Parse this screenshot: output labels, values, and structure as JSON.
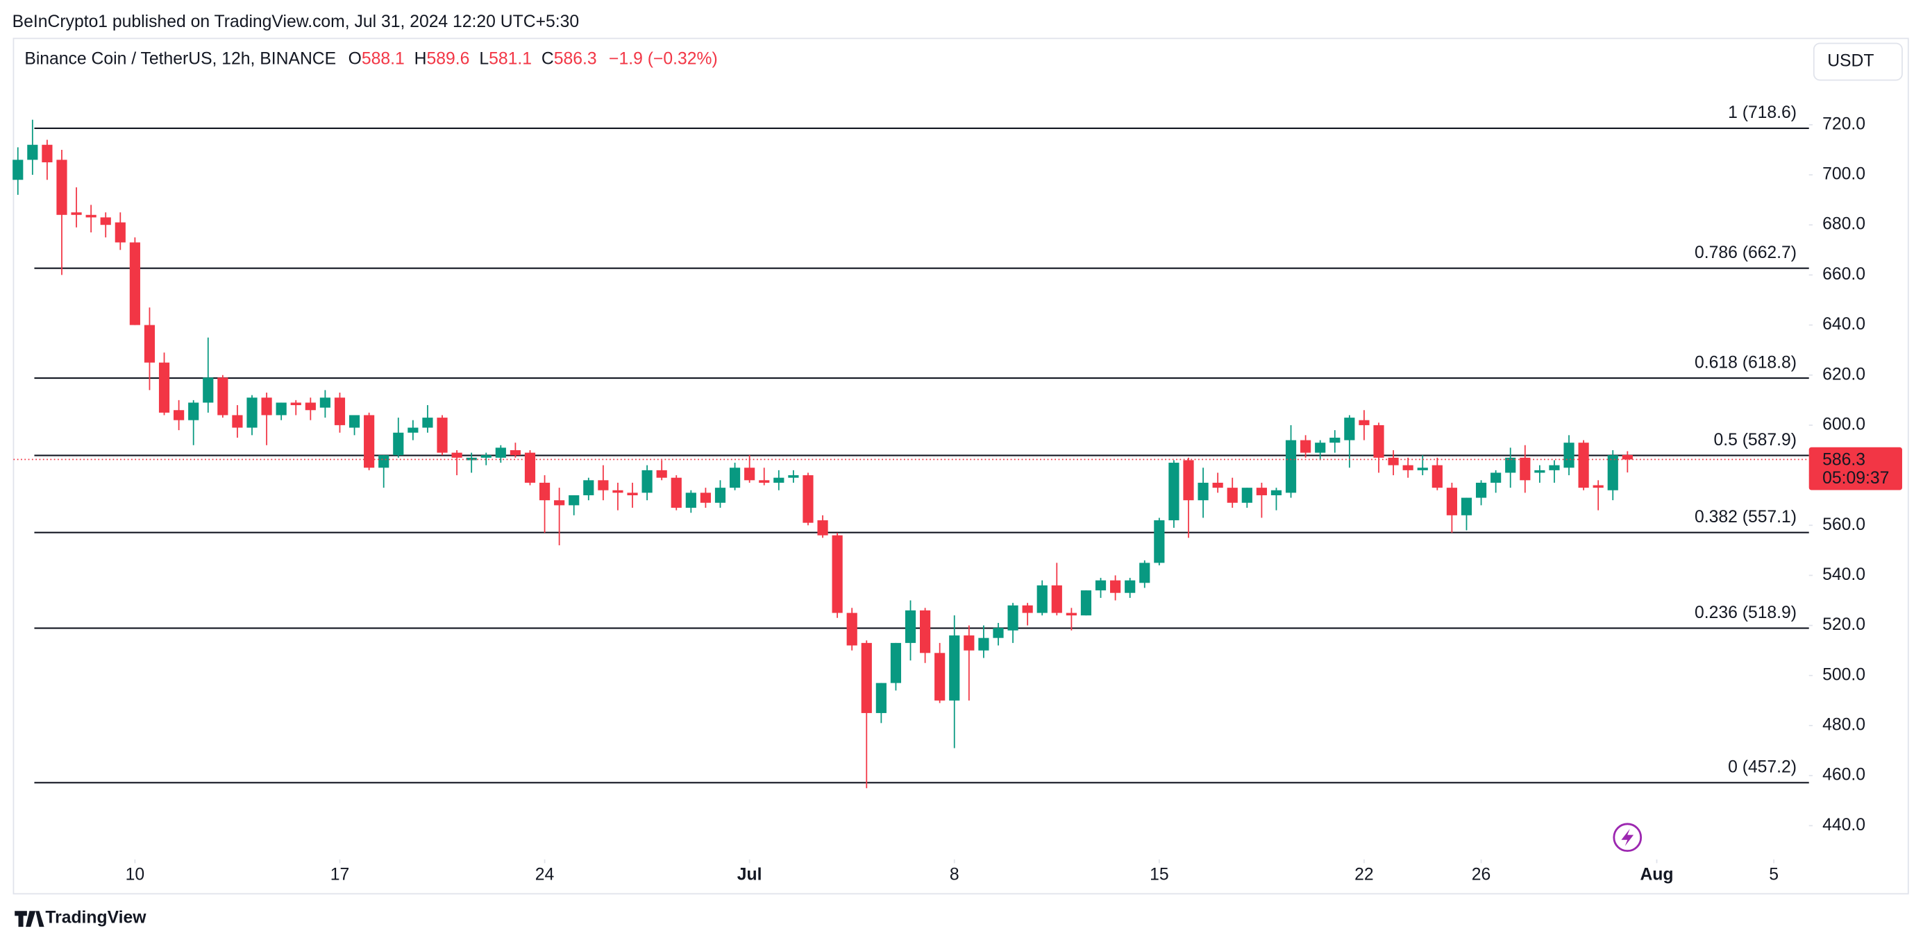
{
  "header": "BeInCrypto1 published on TradingView.com, Jul 31, 2024 12:20 UTC+5:30",
  "footer": "TradingView",
  "currency_button": "USDT",
  "countdown": "05:09:37",
  "chart_data": {
    "type": "candlestick",
    "legend": {
      "symbol": "Binance Coin / TetherUS, 12h, BINANCE",
      "open_label": "O",
      "open": 588.1,
      "high_label": "H",
      "high": 589.6,
      "low_label": "L",
      "low": 581.1,
      "close_label": "C",
      "close": 586.3,
      "change": "−1.9 (−0.32%)"
    },
    "up_color": "#089981",
    "down_color": "#f23645",
    "open": [
      698,
      706,
      712,
      706,
      685,
      684,
      683,
      681,
      673,
      640,
      625,
      606,
      602,
      609,
      619,
      604,
      599,
      611,
      604,
      609,
      609,
      607,
      611,
      599,
      604,
      583,
      588,
      597,
      599,
      603,
      589,
      586,
      587,
      587,
      590,
      589,
      577,
      570,
      568,
      572,
      578,
      574,
      573,
      573,
      582,
      579,
      567,
      573,
      569,
      575,
      583,
      578,
      577,
      579,
      580,
      562,
      556,
      525,
      513,
      485,
      497,
      513,
      526,
      509,
      490,
      516,
      510,
      515,
      518,
      528,
      525,
      536,
      525,
      524,
      534,
      538,
      533,
      537,
      545,
      562,
      586,
      570,
      577,
      575,
      569,
      575,
      572,
      573,
      594,
      589,
      593,
      594,
      602,
      600,
      587,
      584,
      582,
      584,
      575,
      564,
      571,
      577,
      581,
      587,
      581,
      582,
      583,
      593,
      576,
      574,
      588.1
    ],
    "high": [
      711,
      722,
      714,
      710,
      695,
      688,
      685,
      685,
      675,
      647,
      629,
      610,
      610,
      635,
      620,
      608,
      612,
      613,
      609,
      610,
      611,
      614,
      613,
      603,
      605,
      588,
      603,
      602,
      608,
      604,
      590,
      589,
      589,
      592,
      593,
      590,
      580,
      575,
      572,
      579,
      584,
      577,
      577,
      584,
      586,
      580,
      574,
      575,
      578,
      585,
      588,
      583,
      582,
      582,
      581,
      564,
      557,
      527,
      514,
      497,
      513,
      530,
      527,
      513,
      524,
      520,
      520,
      521,
      529,
      529,
      538,
      545,
      527,
      534,
      539,
      540,
      539,
      546,
      563,
      586,
      587,
      583,
      581,
      579,
      575,
      577,
      575,
      600,
      596,
      594,
      598,
      604,
      606,
      601,
      590,
      587,
      588,
      587,
      577,
      571,
      578,
      582,
      591,
      592,
      584,
      586,
      596,
      594,
      578,
      590,
      589.6
    ],
    "low": [
      692,
      700,
      698,
      660,
      679,
      677,
      675,
      670,
      640,
      614,
      604,
      598,
      592,
      605,
      603,
      595,
      596,
      592,
      602,
      604,
      602,
      603,
      597,
      596,
      582,
      575,
      587,
      594,
      597,
      588,
      580,
      581,
      584,
      585,
      587,
      576,
      557,
      552,
      564,
      570,
      570,
      566,
      567,
      570,
      578,
      566,
      565,
      567,
      567,
      574,
      577,
      576,
      574,
      577,
      560,
      555,
      523,
      510,
      455,
      481,
      494,
      506,
      505,
      489,
      471,
      490,
      507,
      512,
      513,
      520,
      524,
      524,
      518,
      524,
      531,
      530,
      531,
      535,
      544,
      559,
      555,
      563,
      573,
      567,
      567,
      563,
      566,
      571,
      587,
      586,
      589,
      583,
      594,
      581,
      580,
      579,
      580,
      574,
      557,
      558,
      568,
      573,
      575,
      573,
      577,
      577,
      580,
      574,
      566,
      570,
      581.1
    ],
    "close": [
      706,
      712,
      705,
      684,
      684,
      683,
      680,
      673,
      640,
      625,
      605,
      602,
      609,
      619,
      604,
      599,
      611,
      604,
      609,
      608,
      606,
      611,
      600,
      604,
      583,
      588,
      597,
      599,
      603,
      589,
      587,
      587,
      588,
      591,
      588,
      577,
      570,
      568,
      572,
      578,
      574,
      573,
      572,
      582,
      579,
      567,
      573,
      569,
      575,
      583,
      578,
      577,
      579,
      580,
      561,
      556,
      525,
      512,
      485,
      497,
      513,
      526,
      509,
      490,
      516,
      510,
      515,
      519,
      528,
      525,
      536,
      525,
      524,
      534,
      538,
      533,
      538,
      545,
      562,
      585,
      570,
      577,
      575,
      569,
      575,
      572,
      574,
      594,
      589,
      593,
      595,
      603,
      600,
      587,
      584,
      582,
      583,
      575,
      564,
      571,
      577,
      581,
      587,
      578,
      582,
      584,
      593,
      575,
      575,
      588,
      586.3
    ],
    "xlim": [
      -0.3,
      122.4
    ],
    "xticks": [
      {
        "value": 8,
        "label": "10"
      },
      {
        "value": 22,
        "label": "17"
      },
      {
        "value": 36,
        "label": "24"
      },
      {
        "value": 50,
        "label": "Jul"
      },
      {
        "value": 64,
        "label": "8"
      },
      {
        "value": 78,
        "label": "15"
      },
      {
        "value": 92,
        "label": "22"
      },
      {
        "value": 100,
        "label": "26"
      },
      {
        "value": 112,
        "label": "Aug"
      },
      {
        "value": 120,
        "label": "5"
      }
    ],
    "ylim": [
      427,
      754
    ],
    "yticks": [
      {
        "value": 440,
        "label": "440.0"
      },
      {
        "value": 460,
        "label": "460.0"
      },
      {
        "value": 480,
        "label": "480.0"
      },
      {
        "value": 500,
        "label": "500.0"
      },
      {
        "value": 520,
        "label": "520.0"
      },
      {
        "value": 540,
        "label": "540.0"
      },
      {
        "value": 560,
        "label": "560.0"
      },
      {
        "value": 580,
        "label": "580.0"
      },
      {
        "value": 600,
        "label": "600.0"
      },
      {
        "value": 620,
        "label": "620.0"
      },
      {
        "value": 640,
        "label": "640.0"
      },
      {
        "value": 660,
        "label": "660.0"
      },
      {
        "value": 680,
        "label": "680.0"
      },
      {
        "value": 700,
        "label": "700.0"
      },
      {
        "value": 720,
        "label": "720.0"
      }
    ],
    "fib_levels": [
      {
        "value": 718.6,
        "label": "1 (718.6)"
      },
      {
        "value": 662.7,
        "label": "0.786 (662.7)"
      },
      {
        "value": 618.8,
        "label": "0.618 (618.8)"
      },
      {
        "value": 587.9,
        "label": "0.5 (587.9)"
      },
      {
        "value": 557.1,
        "label": "0.382 (557.1)"
      },
      {
        "value": 518.9,
        "label": "0.236 (518.9)"
      },
      {
        "value": 457.2,
        "label": "0 (457.2)"
      }
    ]
  }
}
